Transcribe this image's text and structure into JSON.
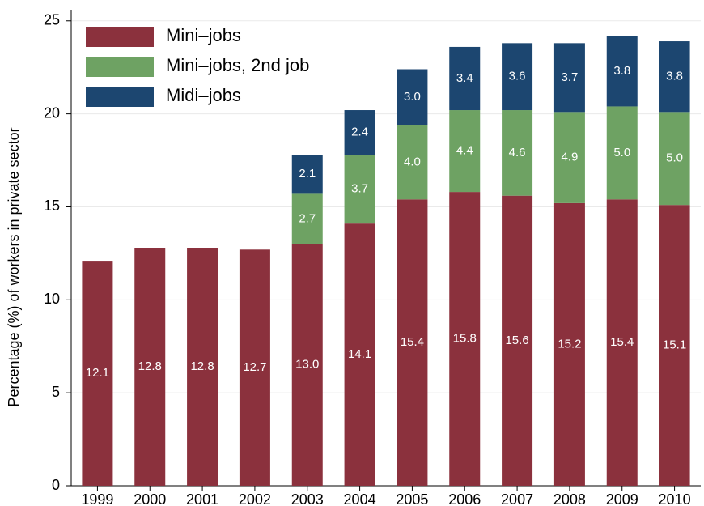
{
  "chart_data": {
    "type": "stacked_bar",
    "y_label": "Percentage (%) of workers in private sector",
    "categories": [
      "1999",
      "2000",
      "2001",
      "2002",
      "2003",
      "2004",
      "2005",
      "2006",
      "2007",
      "2008",
      "2009",
      "2010"
    ],
    "series": [
      {
        "name": "Mini–jobs",
        "color": "#8b313d",
        "values": [
          12.1,
          12.8,
          12.8,
          12.7,
          13.0,
          14.1,
          15.4,
          15.8,
          15.6,
          15.2,
          15.4,
          15.1
        ],
        "value_labels": [
          "12.1",
          "12.8",
          "12.8",
          "12.7",
          "13.0",
          "14.1",
          "15.4",
          "15.8",
          "15.6",
          "15.2",
          "15.4",
          "15.1"
        ]
      },
      {
        "name": "Mini–jobs, 2nd job",
        "color": "#6ea263",
        "values": [
          null,
          null,
          null,
          null,
          2.7,
          3.7,
          4.0,
          4.4,
          4.6,
          4.9,
          5.0,
          5.0
        ],
        "value_labels": [
          null,
          null,
          null,
          null,
          "2.7",
          "3.7",
          "4.0",
          "4.4",
          "4.6",
          "4.9",
          "5.0",
          "5.0"
        ]
      },
      {
        "name": "Midi–jobs",
        "color": "#1c4670",
        "values": [
          null,
          null,
          null,
          null,
          2.1,
          2.4,
          3.0,
          3.4,
          3.6,
          3.7,
          3.8,
          3.8
        ],
        "value_labels": [
          null,
          null,
          null,
          null,
          "2.1",
          "2.4",
          "3.0",
          "3.4",
          "3.6",
          "3.7",
          "3.8",
          "3.8"
        ]
      }
    ],
    "ylim": [
      0,
      25.6
    ],
    "yticks": [
      0,
      5,
      10,
      15,
      20,
      25
    ],
    "grid": true,
    "legend": "upper left"
  }
}
